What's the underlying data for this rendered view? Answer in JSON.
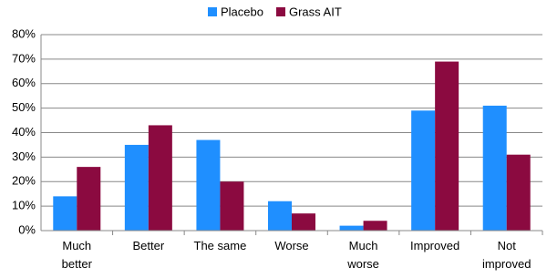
{
  "chart_data": {
    "type": "bar",
    "categories": [
      "Much\nbetter",
      "Better",
      "The same",
      "Worse",
      "Much\nworse",
      "Improved",
      "Not\nimproved"
    ],
    "series": [
      {
        "name": "Placebo",
        "color": "#1f8fff",
        "values": [
          14,
          35,
          37,
          12,
          2,
          49,
          51
        ]
      },
      {
        "name": "Grass AIT",
        "color": "#8b0a40",
        "values": [
          26,
          43,
          20,
          7,
          4,
          69,
          31
        ]
      }
    ],
    "ylim": [
      0,
      80
    ],
    "yticks": [
      {
        "value": 0,
        "label": "0%"
      },
      {
        "value": 10,
        "label": "10%"
      },
      {
        "value": 20,
        "label": "20%"
      },
      {
        "value": 30,
        "label": "30%"
      },
      {
        "value": 40,
        "label": "40%"
      },
      {
        "value": 50,
        "label": "50%"
      },
      {
        "value": 60,
        "label": "60%"
      },
      {
        "value": 70,
        "label": "70%"
      },
      {
        "value": 80,
        "label": "80%"
      }
    ],
    "grid": true,
    "legend": "top"
  }
}
